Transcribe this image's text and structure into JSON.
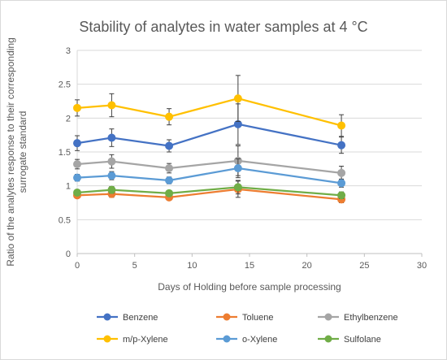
{
  "chart_data": {
    "type": "line",
    "title": "Stability of analytes in water samples at 4 °C",
    "xlabel": "Days of Holding before sample processing",
    "ylabel": "Ratio of the analytes response to their corresponding surrogate standard",
    "ylabel_lines": [
      "Ratio of the analytes response to their corresponding",
      "surrogate standard"
    ],
    "xlim": [
      0,
      30
    ],
    "ylim": [
      0,
      3
    ],
    "x_ticks": [
      0,
      5,
      10,
      15,
      20,
      25,
      30
    ],
    "y_ticks": [
      "0",
      "0.5",
      "1",
      "1.5",
      "2",
      "2.5",
      "3"
    ],
    "grid": "horizontal",
    "legend_position": "bottom",
    "x": [
      0,
      3,
      8,
      14,
      23
    ],
    "series": [
      {
        "name": "Benzene",
        "color": "#4472c4",
        "values": [
          1.63,
          1.71,
          1.59,
          1.91,
          1.6
        ],
        "errors": [
          0.11,
          0.13,
          0.09,
          0.3,
          0.12
        ]
      },
      {
        "name": "Toluene",
        "color": "#ed7d31",
        "values": [
          0.86,
          0.88,
          0.83,
          0.95,
          0.8
        ],
        "errors": [
          0.04,
          0.05,
          0.04,
          0.12,
          0.05
        ]
      },
      {
        "name": "Ethylbenzene",
        "color": "#a5a5a5",
        "values": [
          1.32,
          1.36,
          1.26,
          1.37,
          1.19
        ],
        "errors": [
          0.07,
          0.1,
          0.07,
          0.22,
          0.1
        ]
      },
      {
        "name": "m/p-Xylene",
        "color": "#ffc000",
        "values": [
          2.15,
          2.19,
          2.02,
          2.29,
          1.89
        ],
        "errors": [
          0.12,
          0.17,
          0.12,
          0.34,
          0.16
        ]
      },
      {
        "name": "o-Xylene",
        "color": "#5b9bd5",
        "values": [
          1.12,
          1.15,
          1.08,
          1.26,
          1.04
        ],
        "errors": [
          0.05,
          0.06,
          0.05,
          0.14,
          0.06
        ]
      },
      {
        "name": "Sulfolane",
        "color": "#70ad47",
        "values": [
          0.9,
          0.94,
          0.89,
          0.98,
          0.86
        ],
        "errors": [
          0.04,
          0.05,
          0.04,
          0.1,
          0.05
        ]
      }
    ]
  }
}
